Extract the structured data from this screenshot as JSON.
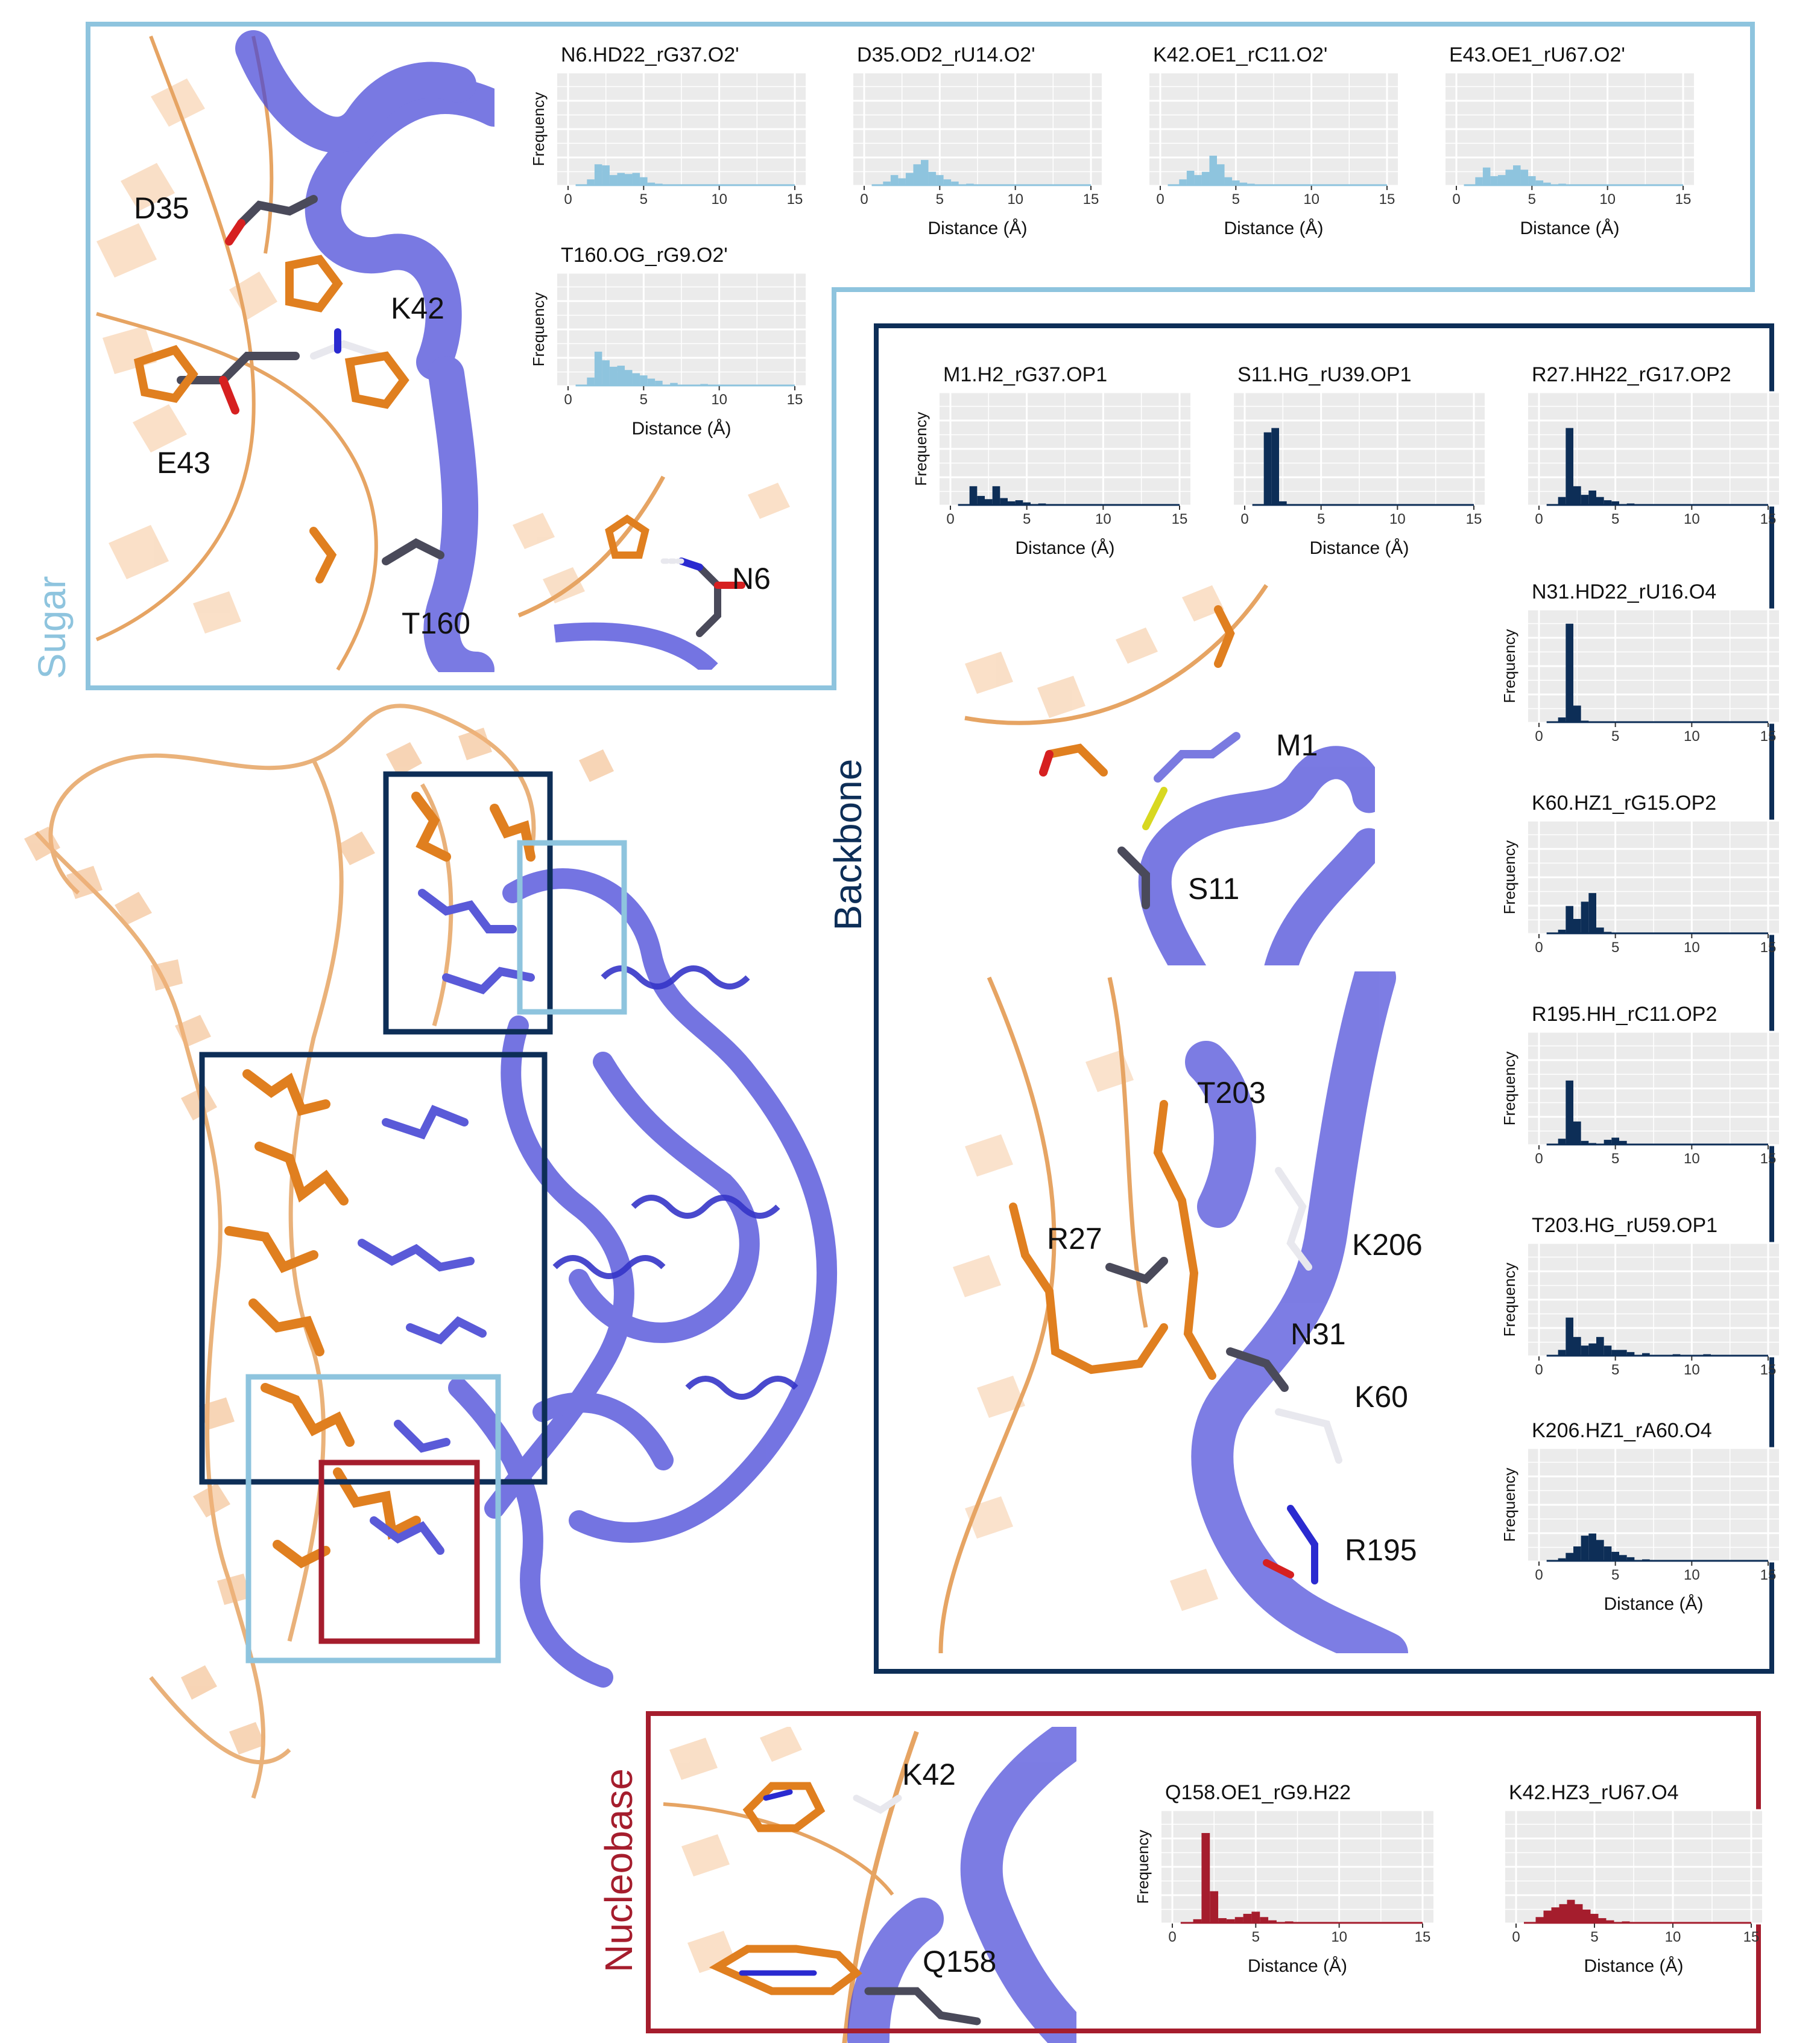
{
  "colors": {
    "sugar": "#8ec4de",
    "backbone": "#0d2e57",
    "nucleobase": "#a51d2d",
    "protein": "#3b3bd6",
    "rna": "#e08a2c",
    "panel_bg": "#ebebeb"
  },
  "sections": {
    "sugar": "Sugar",
    "backbone": "Backbone",
    "nucleobase": "Nucleobase"
  },
  "axis": {
    "xlabel": "Distance (Å)",
    "ylabel": "Frequency",
    "ticks": [
      "0",
      "5",
      "10",
      "15"
    ]
  },
  "residue_labels": {
    "sugar": [
      "D35",
      "K42",
      "E43",
      "T160",
      "N6"
    ],
    "backbone": [
      "M1",
      "S11",
      "T203",
      "R27",
      "K206",
      "N31",
      "K60",
      "R195"
    ],
    "nucleobase": [
      "K42",
      "Q158"
    ]
  },
  "chart_data": [
    {
      "type": "bar",
      "group": "sugar",
      "title": "N6.HD22_rG37.O2'",
      "xlabel": "",
      "ylabel": "Frequency",
      "xlim": [
        0,
        15
      ],
      "ylim": [
        0,
        1
      ],
      "x": [
        1.5,
        2.0,
        2.5,
        3.0,
        3.5,
        4.0,
        4.5,
        5.0,
        5.5,
        6.0,
        7.0,
        9.0,
        12.0
      ],
      "values": [
        0.06,
        0.2,
        0.19,
        0.1,
        0.12,
        0.11,
        0.12,
        0.08,
        0.03,
        0.02,
        0.01,
        0.01,
        0.01
      ]
    },
    {
      "type": "bar",
      "group": "sugar",
      "title": "D35.OD2_rU14.O2'",
      "xlabel": "Distance (Å)",
      "ylabel": "",
      "xlim": [
        0,
        15
      ],
      "ylim": [
        0,
        1
      ],
      "x": [
        1.5,
        2.0,
        2.5,
        3.0,
        3.5,
        4.0,
        4.5,
        5.0,
        5.5,
        6.0,
        7.0,
        9.0,
        12.0
      ],
      "values": [
        0.04,
        0.1,
        0.07,
        0.12,
        0.2,
        0.24,
        0.13,
        0.1,
        0.06,
        0.04,
        0.02,
        0.01,
        0.01
      ]
    },
    {
      "type": "bar",
      "group": "sugar",
      "title": "K42.OE1_rC11.O2'",
      "xlabel": "Distance (Å)",
      "ylabel": "",
      "xlim": [
        0,
        15
      ],
      "ylim": [
        0,
        1
      ],
      "x": [
        1.5,
        2.0,
        2.5,
        3.0,
        3.5,
        4.0,
        4.5,
        5.0,
        5.5,
        6.0,
        7.0,
        9.0,
        12.0
      ],
      "values": [
        0.06,
        0.14,
        0.1,
        0.13,
        0.28,
        0.2,
        0.08,
        0.05,
        0.03,
        0.02,
        0.01,
        0.01,
        0.01
      ]
    },
    {
      "type": "bar",
      "group": "sugar",
      "title": "E43.OE1_rU67.O2'",
      "xlabel": "Distance (Å)",
      "ylabel": "",
      "xlim": [
        0,
        15
      ],
      "ylim": [
        0,
        1
      ],
      "x": [
        1.5,
        2.0,
        2.5,
        3.0,
        3.5,
        4.0,
        4.5,
        5.0,
        5.5,
        6.0,
        7.0,
        9.0,
        12.0
      ],
      "values": [
        0.08,
        0.17,
        0.09,
        0.1,
        0.15,
        0.19,
        0.15,
        0.09,
        0.05,
        0.03,
        0.02,
        0.01,
        0.01
      ]
    },
    {
      "type": "bar",
      "group": "sugar",
      "title": "T160.OG_rG9.O2'",
      "xlabel": "Distance (Å)",
      "ylabel": "Frequency",
      "xlim": [
        0,
        15
      ],
      "ylim": [
        0,
        1
      ],
      "x": [
        1.5,
        2.0,
        2.5,
        3.0,
        3.5,
        4.0,
        4.5,
        5.0,
        5.5,
        6.0,
        7.0,
        9.0,
        12.0
      ],
      "values": [
        0.08,
        0.32,
        0.24,
        0.18,
        0.19,
        0.15,
        0.12,
        0.1,
        0.07,
        0.05,
        0.03,
        0.02,
        0.01
      ]
    },
    {
      "type": "bar",
      "group": "backbone",
      "title": "M1.H2_rG37.OP1",
      "xlabel": "Distance (Å)",
      "ylabel": "Frequency",
      "xlim": [
        0,
        15
      ],
      "ylim": [
        0,
        1
      ],
      "x": [
        1.5,
        2.0,
        2.5,
        3.0,
        3.5,
        4.0,
        4.5,
        5.0,
        6.0,
        7.0,
        9.0,
        12.0
      ],
      "values": [
        0.18,
        0.09,
        0.06,
        0.18,
        0.07,
        0.04,
        0.05,
        0.03,
        0.02,
        0.01,
        0.01,
        0.01
      ]
    },
    {
      "type": "bar",
      "group": "backbone",
      "title": "S11.HG_rU39.OP1",
      "xlabel": "Distance (Å)",
      "ylabel": "",
      "xlim": [
        0,
        15
      ],
      "ylim": [
        0,
        1
      ],
      "x": [
        1.5,
        2.0,
        2.5,
        3.0,
        5.0,
        8.0,
        12.0
      ],
      "values": [
        0.68,
        0.72,
        0.04,
        0.01,
        0.01,
        0.01,
        0.01
      ]
    },
    {
      "type": "bar",
      "group": "backbone",
      "title": "R27.HH22_rG17.OP2",
      "xlabel": "",
      "ylabel": "",
      "xlim": [
        0,
        15
      ],
      "ylim": [
        0,
        1
      ],
      "x": [
        1.5,
        2.0,
        2.5,
        3.0,
        3.5,
        4.0,
        4.5,
        5.0,
        6.0,
        7.0,
        9.0,
        12.0
      ],
      "values": [
        0.08,
        0.72,
        0.18,
        0.1,
        0.14,
        0.08,
        0.05,
        0.04,
        0.02,
        0.01,
        0.01,
        0.01
      ]
    },
    {
      "type": "bar",
      "group": "backbone",
      "title": "N31.HD22_rU16.O4",
      "xlabel": "",
      "ylabel": "Frequency",
      "xlim": [
        0,
        15
      ],
      "ylim": [
        0,
        1
      ],
      "x": [
        1.5,
        2.0,
        2.5,
        3.0,
        4.0,
        6.0,
        9.0,
        12.0
      ],
      "values": [
        0.05,
        0.92,
        0.16,
        0.02,
        0.01,
        0.01,
        0.01,
        0.01
      ]
    },
    {
      "type": "bar",
      "group": "backbone",
      "title": "K60.HZ1_rG15.OP2",
      "xlabel": "",
      "ylabel": "Frequency",
      "xlim": [
        0,
        15
      ],
      "ylim": [
        0,
        1
      ],
      "x": [
        1.5,
        2.0,
        2.5,
        3.0,
        3.5,
        4.0,
        4.5,
        5.0,
        7.0,
        12.0
      ],
      "values": [
        0.04,
        0.26,
        0.14,
        0.3,
        0.38,
        0.06,
        0.02,
        0.01,
        0.01,
        0.01
      ]
    },
    {
      "type": "bar",
      "group": "backbone",
      "title": "R195.HH_rC11.OP2",
      "xlabel": "",
      "ylabel": "Frequency",
      "xlim": [
        0,
        15
      ],
      "ylim": [
        0,
        1
      ],
      "x": [
        1.5,
        2.0,
        2.5,
        3.0,
        3.5,
        4.5,
        5.0,
        5.5,
        7.0,
        12.0
      ],
      "values": [
        0.06,
        0.6,
        0.22,
        0.04,
        0.02,
        0.05,
        0.07,
        0.04,
        0.01,
        0.01
      ]
    },
    {
      "type": "bar",
      "group": "backbone",
      "title": "T203.HG_rU59.OP1",
      "xlabel": "",
      "ylabel": "Frequency",
      "xlim": [
        0,
        15
      ],
      "ylim": [
        0,
        1
      ],
      "x": [
        1.5,
        2.0,
        2.5,
        3.0,
        3.5,
        4.0,
        4.5,
        5.0,
        5.5,
        6.0,
        7.0,
        9.0,
        11.0,
        13.0
      ],
      "values": [
        0.06,
        0.36,
        0.18,
        0.1,
        0.12,
        0.18,
        0.1,
        0.06,
        0.06,
        0.04,
        0.03,
        0.02,
        0.02,
        0.01
      ]
    },
    {
      "type": "bar",
      "group": "backbone",
      "title": "K206.HZ1_rA60.O4",
      "xlabel": "Distance (Å)",
      "ylabel": "Frequency",
      "xlim": [
        0,
        15
      ],
      "ylim": [
        0,
        1
      ],
      "x": [
        1.5,
        2.0,
        2.5,
        3.0,
        3.5,
        4.0,
        4.5,
        5.0,
        5.5,
        6.0,
        7.0,
        9.0,
        12.0
      ],
      "values": [
        0.03,
        0.08,
        0.14,
        0.24,
        0.26,
        0.2,
        0.14,
        0.09,
        0.06,
        0.04,
        0.02,
        0.01,
        0.01
      ]
    },
    {
      "type": "bar",
      "group": "nucleobase",
      "title": "Q158.OE1_rG9.H22",
      "xlabel": "Distance (Å)",
      "ylabel": "Frequency",
      "xlim": [
        0,
        15
      ],
      "ylim": [
        0,
        1
      ],
      "x": [
        1.5,
        2.0,
        2.5,
        3.0,
        3.5,
        4.0,
        4.5,
        5.0,
        5.5,
        6.0,
        7.0,
        9.0,
        12.0
      ],
      "values": [
        0.04,
        0.84,
        0.3,
        0.05,
        0.04,
        0.06,
        0.09,
        0.11,
        0.06,
        0.03,
        0.02,
        0.01,
        0.01
      ]
    },
    {
      "type": "bar",
      "group": "nucleobase",
      "title": "K42.HZ3_rU67.O4",
      "xlabel": "Distance (Å)",
      "ylabel": "",
      "xlim": [
        0,
        15
      ],
      "ylim": [
        0,
        1
      ],
      "x": [
        1.5,
        2.0,
        2.5,
        3.0,
        3.5,
        4.0,
        4.5,
        5.0,
        5.5,
        6.0,
        7.0,
        9.0,
        12.0
      ],
      "values": [
        0.06,
        0.12,
        0.15,
        0.18,
        0.22,
        0.18,
        0.13,
        0.09,
        0.05,
        0.03,
        0.02,
        0.01,
        0.01
      ]
    }
  ]
}
